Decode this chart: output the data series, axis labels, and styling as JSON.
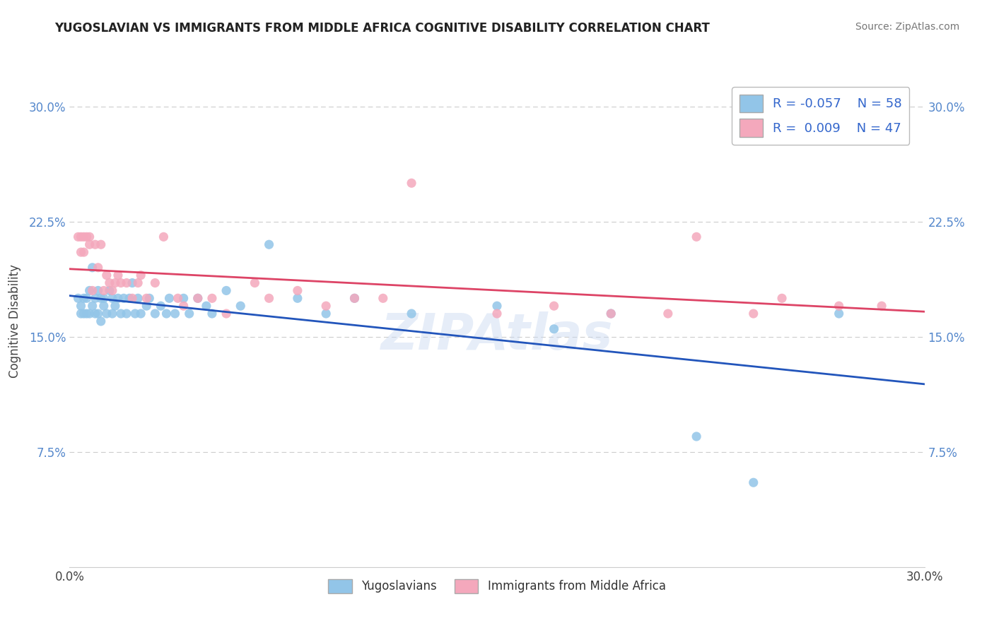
{
  "title": "YUGOSLAVIAN VS IMMIGRANTS FROM MIDDLE AFRICA COGNITIVE DISABILITY CORRELATION CHART",
  "source": "Source: ZipAtlas.com",
  "ylabel": "Cognitive Disability",
  "xlim": [
    0.0,
    0.3
  ],
  "ylim": [
    0.0,
    0.32
  ],
  "yticks": [
    0.075,
    0.15,
    0.225,
    0.3
  ],
  "ytick_labels": [
    "7.5%",
    "15.0%",
    "22.5%",
    "30.0%"
  ],
  "xticks": [
    0.0,
    0.3
  ],
  "xtick_labels": [
    "0.0%",
    "30.0%"
  ],
  "legend_r1": "R = -0.057",
  "legend_n1": "N = 58",
  "legend_r2": "R =  0.009",
  "legend_n2": "N = 47",
  "color_blue": "#92C5E8",
  "color_pink": "#F4A8BC",
  "line_blue": "#2255BB",
  "line_pink": "#DD4466",
  "background_color": "#ffffff",
  "series1_label": "Yugoslavians",
  "series2_label": "Immigrants from Middle Africa",
  "yuga_x": [
    0.003,
    0.004,
    0.004,
    0.005,
    0.005,
    0.006,
    0.006,
    0.007,
    0.007,
    0.008,
    0.008,
    0.009,
    0.009,
    0.01,
    0.01,
    0.011,
    0.011,
    0.012,
    0.012,
    0.013,
    0.014,
    0.015,
    0.015,
    0.016,
    0.017,
    0.018,
    0.019,
    0.02,
    0.021,
    0.022,
    0.023,
    0.024,
    0.025,
    0.027,
    0.028,
    0.03,
    0.032,
    0.034,
    0.035,
    0.037,
    0.04,
    0.042,
    0.045,
    0.048,
    0.05,
    0.055,
    0.06,
    0.07,
    0.08,
    0.09,
    0.1,
    0.12,
    0.15,
    0.17,
    0.19,
    0.22,
    0.24,
    0.27
  ],
  "yuga_y": [
    0.175,
    0.17,
    0.165,
    0.175,
    0.165,
    0.175,
    0.165,
    0.18,
    0.165,
    0.195,
    0.17,
    0.175,
    0.165,
    0.18,
    0.165,
    0.175,
    0.16,
    0.175,
    0.17,
    0.165,
    0.18,
    0.175,
    0.165,
    0.17,
    0.175,
    0.165,
    0.175,
    0.165,
    0.175,
    0.185,
    0.165,
    0.175,
    0.165,
    0.17,
    0.175,
    0.165,
    0.17,
    0.165,
    0.175,
    0.165,
    0.175,
    0.165,
    0.175,
    0.17,
    0.165,
    0.18,
    0.17,
    0.21,
    0.175,
    0.165,
    0.175,
    0.165,
    0.17,
    0.155,
    0.165,
    0.085,
    0.055,
    0.165
  ],
  "africa_x": [
    0.003,
    0.004,
    0.004,
    0.005,
    0.005,
    0.006,
    0.007,
    0.007,
    0.008,
    0.009,
    0.01,
    0.011,
    0.012,
    0.013,
    0.014,
    0.015,
    0.016,
    0.017,
    0.018,
    0.02,
    0.022,
    0.024,
    0.025,
    0.027,
    0.03,
    0.033,
    0.038,
    0.04,
    0.045,
    0.05,
    0.055,
    0.065,
    0.07,
    0.08,
    0.09,
    0.1,
    0.11,
    0.12,
    0.15,
    0.17,
    0.19,
    0.21,
    0.22,
    0.24,
    0.25,
    0.27,
    0.285
  ],
  "africa_y": [
    0.215,
    0.215,
    0.205,
    0.215,
    0.205,
    0.215,
    0.215,
    0.21,
    0.18,
    0.21,
    0.195,
    0.21,
    0.18,
    0.19,
    0.185,
    0.18,
    0.185,
    0.19,
    0.185,
    0.185,
    0.175,
    0.185,
    0.19,
    0.175,
    0.185,
    0.215,
    0.175,
    0.17,
    0.175,
    0.175,
    0.165,
    0.185,
    0.175,
    0.18,
    0.17,
    0.175,
    0.175,
    0.25,
    0.165,
    0.17,
    0.165,
    0.165,
    0.215,
    0.165,
    0.175,
    0.17,
    0.17
  ]
}
